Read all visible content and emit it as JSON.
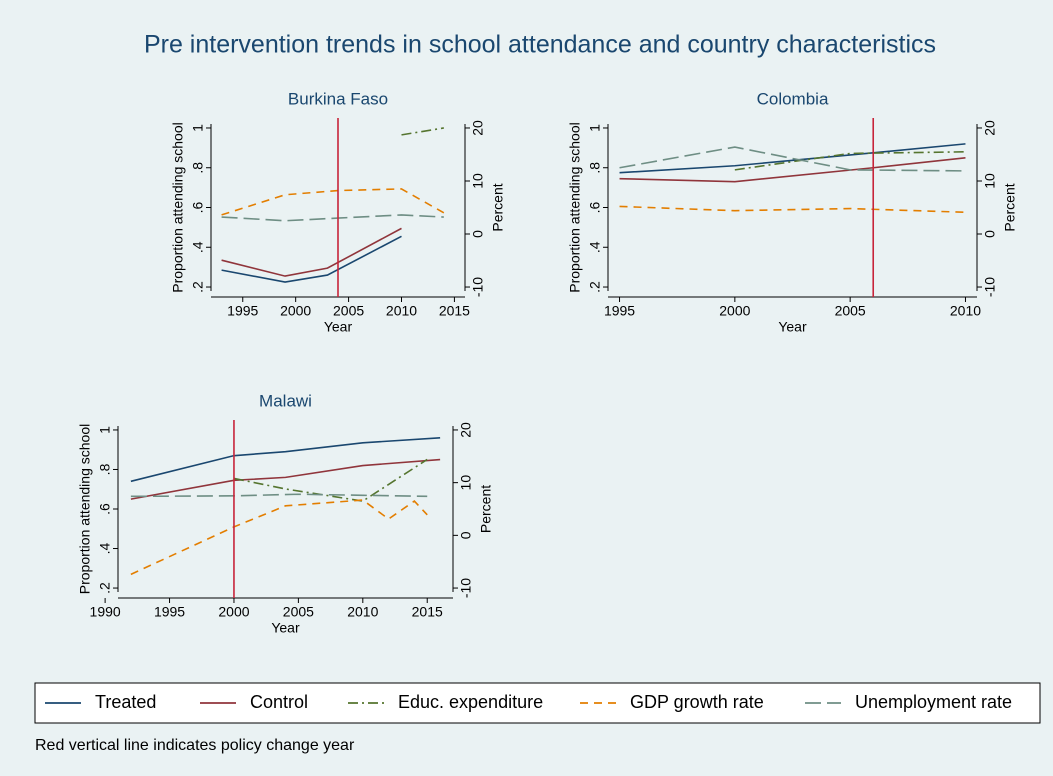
{
  "title": "Pre intervention trends in school attendance and country characteristics",
  "note": "Red vertical line indicates policy change year",
  "legend": {
    "position": "bottom",
    "entries": [
      {
        "name": "Treated",
        "color": "#1a476f",
        "line_style": "solid"
      },
      {
        "name": "Control",
        "color": "#90353b",
        "line_style": "solid"
      },
      {
        "name": "Educ. expenditure",
        "color": "#55752f",
        "line_style": "dashdot"
      },
      {
        "name": "GDP growth rate",
        "color": "#e37e00",
        "line_style": "dashed"
      },
      {
        "name": "Unemployment rate",
        "color": "#6e8e84",
        "line_style": "longdash"
      }
    ]
  },
  "chart_data": [
    {
      "type": "line",
      "title": "Burkina Faso",
      "xlabel": "Year",
      "ylabel": "Proportion attending school",
      "y2label": "Percent",
      "xlim": [
        1992,
        2016
      ],
      "xticks": [
        1995,
        2000,
        2005,
        2010,
        2015
      ],
      "ylim": [
        0.18,
        1.02
      ],
      "yticks": [
        {
          "value": 0.2,
          "label": ".2"
        },
        {
          "value": 0.4,
          "label": ".4"
        },
        {
          "value": 0.6,
          "label": ".6"
        },
        {
          "value": 0.8,
          "label": ".8"
        },
        1
      ],
      "y2lim": [
        -10.75,
        20.75
      ],
      "y2ticks": [
        -10,
        0,
        10,
        20
      ],
      "policy_year": 2004,
      "policy_line_color": "#c7243a",
      "series": [
        {
          "x": [
            1993,
            1999,
            2003,
            2010
          ],
          "values": [
            0.285,
            0.225,
            0.26,
            0.455
          ]
        },
        {
          "x": [
            1993,
            1999,
            2003,
            2010
          ],
          "values": [
            0.335,
            0.255,
            0.295,
            0.495
          ]
        },
        {
          "axis": "y2",
          "x": [
            2010,
            2014
          ],
          "values": [
            18.7,
            20
          ]
        },
        {
          "axis": "y2",
          "x": [
            1993,
            1999,
            2004,
            2010,
            2014
          ],
          "values": [
            3.6,
            7.4,
            8.2,
            8.5,
            4
          ]
        },
        {
          "axis": "y2",
          "x": [
            1993,
            1999,
            2004,
            2010,
            2014
          ],
          "values": [
            3.2,
            2.5,
            3,
            3.6,
            3.2
          ]
        }
      ]
    },
    {
      "type": "line",
      "title": "Colombia",
      "xlabel": "Year",
      "ylabel": "Proportion attending school",
      "y2label": "Percent",
      "xlim": [
        1994.5,
        2010.5
      ],
      "xticks": [
        1995,
        2000,
        2005,
        2010
      ],
      "ylim": [
        0.18,
        1.02
      ],
      "yticks": [
        {
          "value": 0.2,
          "label": ".2"
        },
        {
          "value": 0.4,
          "label": ".4"
        },
        {
          "value": 0.6,
          "label": ".6"
        },
        {
          "value": 0.8,
          "label": ".8"
        },
        1
      ],
      "y2lim": [
        -10.75,
        20.75
      ],
      "y2ticks": [
        -10,
        0,
        10,
        20
      ],
      "policy_year": 2006,
      "policy_line_color": "#c7243a",
      "series": [
        {
          "x": [
            1995,
            2000,
            2006,
            2010
          ],
          "values": [
            0.775,
            0.81,
            0.875,
            0.92
          ]
        },
        {
          "x": [
            1995,
            2000,
            2006,
            2010
          ],
          "values": [
            0.745,
            0.73,
            0.8,
            0.85
          ]
        },
        {
          "axis": "y2",
          "x": [
            2000,
            2005,
            2010
          ],
          "values": [
            12.1,
            15.2,
            15.5
          ]
        },
        {
          "axis": "y2",
          "x": [
            1995,
            2000,
            2005,
            2010
          ],
          "values": [
            5.2,
            4.4,
            4.8,
            4.1
          ]
        },
        {
          "axis": "y2",
          "x": [
            1995,
            2000,
            2005,
            2010
          ],
          "values": [
            12.5,
            16.4,
            12.1,
            11.9
          ]
        }
      ]
    },
    {
      "type": "line",
      "title": "Malawi",
      "xlabel": "Year",
      "ylabel": "Proportion attending school",
      "y2label": "Percent",
      "xlim": [
        1991,
        2017
      ],
      "xticks": [
        1990,
        1995,
        2000,
        2005,
        2010,
        2015
      ],
      "ylim": [
        0.18,
        1.02
      ],
      "yticks": [
        {
          "value": 0.2,
          "label": ".2"
        },
        {
          "value": 0.4,
          "label": ".4"
        },
        {
          "value": 0.6,
          "label": ".6"
        },
        {
          "value": 0.8,
          "label": ".8"
        },
        1
      ],
      "y2lim": [
        -10.75,
        20.75
      ],
      "y2ticks": [
        -10,
        0,
        10,
        20
      ],
      "policy_year": 2000,
      "policy_line_color": "#c7243a",
      "series": [
        {
          "x": [
            1992,
            2000,
            2004,
            2010,
            2016
          ],
          "values": [
            0.74,
            0.87,
            0.89,
            0.935,
            0.96
          ]
        },
        {
          "x": [
            1992,
            2000,
            2004,
            2010,
            2016
          ],
          "values": [
            0.65,
            0.745,
            0.76,
            0.82,
            0.85
          ]
        },
        {
          "axis": "y2",
          "x": [
            2000,
            2004,
            2010,
            2015
          ],
          "values": [
            10.8,
            8.8,
            6.5,
            14.4
          ]
        },
        {
          "axis": "y2",
          "x": [
            1992,
            2000,
            2004,
            2010,
            2012,
            2014,
            2015
          ],
          "values": [
            -7.4,
            1.6,
            5.6,
            6.7,
            3.1,
            6.5,
            3.9
          ]
        },
        {
          "axis": "y2",
          "x": [
            1992,
            2000,
            2005,
            2010,
            2015
          ],
          "values": [
            7.4,
            7.5,
            7.8,
            7.6,
            7.4
          ]
        }
      ]
    }
  ]
}
